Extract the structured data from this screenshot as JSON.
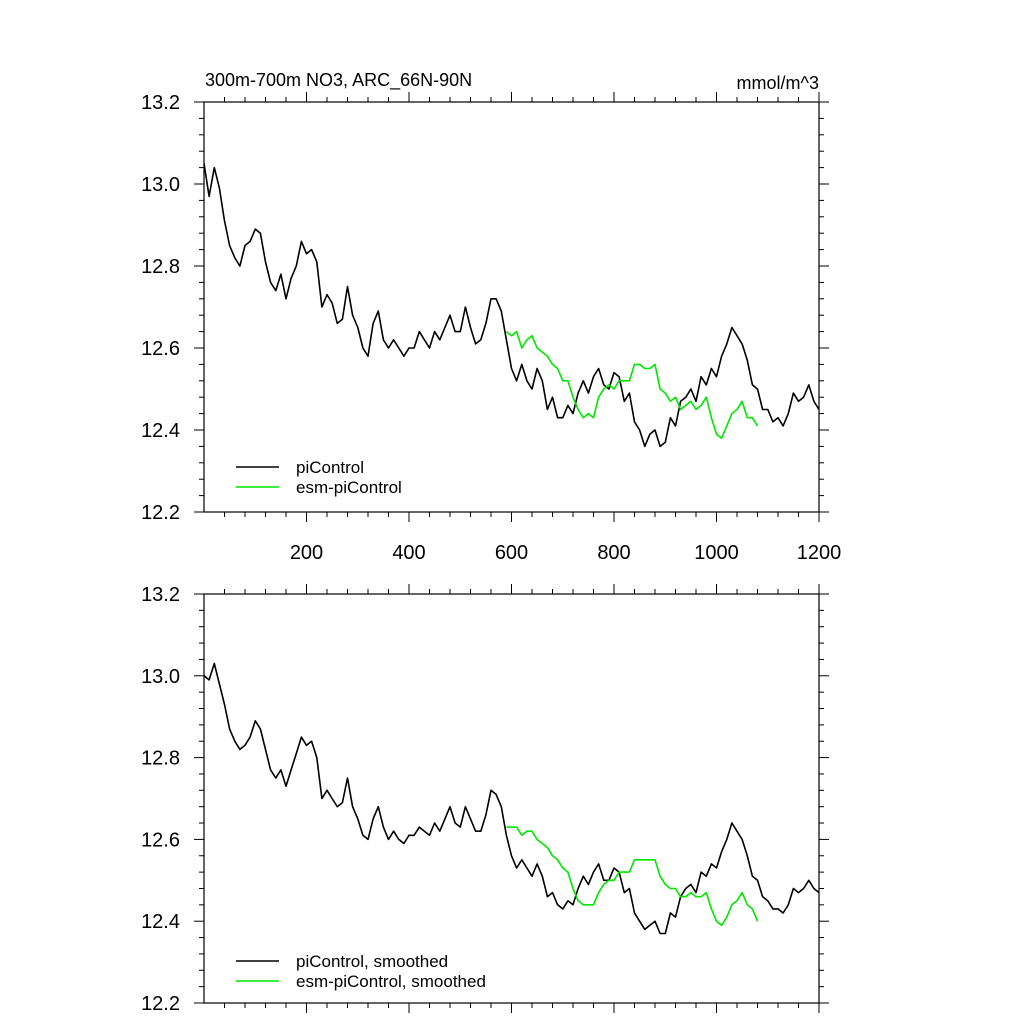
{
  "header": {
    "title": "300m-700m NO3, ARC_66N-90N",
    "units": "mmol/m^3"
  },
  "colors": {
    "piControl": "#000000",
    "esm": "#00e600"
  },
  "chart_data": [
    {
      "type": "line",
      "xlim": [
        0,
        1200
      ],
      "ylim": [
        12.2,
        13.2
      ],
      "x_ticks": [
        200,
        400,
        600,
        800,
        1000,
        1200
      ],
      "x_tick_labels": [
        "200",
        "400",
        "600",
        "800",
        "1000",
        "1200"
      ],
      "y_ticks": [
        12.2,
        12.4,
        12.6,
        12.8,
        13.0,
        13.2
      ],
      "y_tick_labels": [
        "12.2",
        "12.4",
        "12.6",
        "12.8",
        "13.0",
        "13.2"
      ],
      "legend_position": "bottom-left",
      "series": [
        {
          "name": "piControl",
          "color": "#000000",
          "x": [
            0,
            10,
            20,
            30,
            40,
            50,
            60,
            70,
            80,
            90,
            100,
            110,
            120,
            130,
            140,
            150,
            160,
            170,
            180,
            190,
            200,
            210,
            220,
            230,
            240,
            250,
            260,
            270,
            280,
            290,
            300,
            310,
            320,
            330,
            340,
            350,
            360,
            370,
            380,
            390,
            400,
            410,
            420,
            430,
            440,
            450,
            460,
            470,
            480,
            490,
            500,
            510,
            520,
            530,
            540,
            550,
            560,
            570,
            580,
            590,
            600,
            610,
            620,
            630,
            640,
            650,
            660,
            670,
            680,
            690,
            700,
            710,
            720,
            730,
            740,
            750,
            760,
            770,
            780,
            790,
            800,
            810,
            820,
            830,
            840,
            850,
            860,
            870,
            880,
            890,
            900,
            910,
            920,
            930,
            940,
            950,
            960,
            970,
            980,
            990,
            1000,
            1010,
            1020,
            1030,
            1040,
            1050,
            1060,
            1070,
            1080,
            1090,
            1100,
            1110,
            1120,
            1130,
            1140,
            1150,
            1160,
            1170,
            1180,
            1190,
            1200
          ],
          "y": [
            13.05,
            12.97,
            13.04,
            12.99,
            12.91,
            12.85,
            12.82,
            12.8,
            12.85,
            12.86,
            12.89,
            12.88,
            12.81,
            12.76,
            12.74,
            12.78,
            12.72,
            12.77,
            12.8,
            12.86,
            12.83,
            12.84,
            12.81,
            12.7,
            12.73,
            12.71,
            12.66,
            12.67,
            12.75,
            12.68,
            12.65,
            12.6,
            12.58,
            12.66,
            12.69,
            12.62,
            12.6,
            12.62,
            12.6,
            12.58,
            12.6,
            12.6,
            12.64,
            12.62,
            12.6,
            12.64,
            12.62,
            12.65,
            12.68,
            12.64,
            12.64,
            12.7,
            12.65,
            12.61,
            12.62,
            12.66,
            12.72,
            12.72,
            12.69,
            12.62,
            12.55,
            12.52,
            12.56,
            12.52,
            12.5,
            12.55,
            12.52,
            12.45,
            12.48,
            12.43,
            12.43,
            12.46,
            12.44,
            12.49,
            12.52,
            12.49,
            12.53,
            12.55,
            12.51,
            12.5,
            12.54,
            12.53,
            12.47,
            12.49,
            12.42,
            12.4,
            12.36,
            12.39,
            12.4,
            12.36,
            12.37,
            12.43,
            12.41,
            12.47,
            12.48,
            12.5,
            12.47,
            12.53,
            12.51,
            12.55,
            12.53,
            12.58,
            12.61,
            12.65,
            12.63,
            12.61,
            12.57,
            12.51,
            12.5,
            12.45,
            12.45,
            12.42,
            12.43,
            12.41,
            12.44,
            12.49,
            12.47,
            12.48,
            12.51,
            12.47,
            12.45
          ]
        },
        {
          "name": "esm-piControl",
          "color": "#00e600",
          "x": [
            590,
            600,
            610,
            620,
            630,
            640,
            650,
            660,
            670,
            680,
            690,
            700,
            710,
            720,
            730,
            740,
            750,
            760,
            770,
            780,
            790,
            800,
            810,
            820,
            830,
            840,
            850,
            860,
            870,
            880,
            890,
            900,
            910,
            920,
            930,
            940,
            950,
            960,
            970,
            980,
            990,
            1000,
            1010,
            1020,
            1030,
            1040,
            1050,
            1060,
            1070,
            1080
          ],
          "y": [
            12.64,
            12.63,
            12.64,
            12.6,
            12.62,
            12.63,
            12.6,
            12.59,
            12.58,
            12.56,
            12.55,
            12.52,
            12.52,
            12.48,
            12.45,
            12.43,
            12.44,
            12.43,
            12.48,
            12.5,
            12.51,
            12.5,
            12.52,
            12.52,
            12.52,
            12.56,
            12.56,
            12.55,
            12.55,
            12.56,
            12.5,
            12.49,
            12.47,
            12.48,
            12.45,
            12.46,
            12.47,
            12.45,
            12.46,
            12.48,
            12.43,
            12.39,
            12.38,
            12.41,
            12.44,
            12.45,
            12.47,
            12.43,
            12.43,
            12.41
          ]
        }
      ],
      "legend": [
        "piControl",
        "esm-piControl"
      ]
    },
    {
      "type": "line",
      "xlim": [
        0,
        1200
      ],
      "ylim": [
        12.2,
        13.2
      ],
      "x_ticks": [
        200,
        400,
        600,
        800,
        1000,
        1200
      ],
      "y_ticks": [
        12.2,
        12.4,
        12.6,
        12.8,
        13.0,
        13.2
      ],
      "y_tick_labels": [
        "12.2",
        "12.4",
        "12.6",
        "12.8",
        "13.0",
        "13.2"
      ],
      "legend_position": "bottom-left",
      "series": [
        {
          "name": "piControl, smoothed",
          "color": "#000000",
          "x": [
            0,
            10,
            20,
            30,
            40,
            50,
            60,
            70,
            80,
            90,
            100,
            110,
            120,
            130,
            140,
            150,
            160,
            170,
            180,
            190,
            200,
            210,
            220,
            230,
            240,
            250,
            260,
            270,
            280,
            290,
            300,
            310,
            320,
            330,
            340,
            350,
            360,
            370,
            380,
            390,
            400,
            410,
            420,
            430,
            440,
            450,
            460,
            470,
            480,
            490,
            500,
            510,
            520,
            530,
            540,
            550,
            560,
            570,
            580,
            590,
            600,
            610,
            620,
            630,
            640,
            650,
            660,
            670,
            680,
            690,
            700,
            710,
            720,
            730,
            740,
            750,
            760,
            770,
            780,
            790,
            800,
            810,
            820,
            830,
            840,
            850,
            860,
            870,
            880,
            890,
            900,
            910,
            920,
            930,
            940,
            950,
            960,
            970,
            980,
            990,
            1000,
            1010,
            1020,
            1030,
            1040,
            1050,
            1060,
            1070,
            1080,
            1090,
            1100,
            1110,
            1120,
            1130,
            1140,
            1150,
            1160,
            1170,
            1180,
            1190,
            1200
          ],
          "y": [
            13.0,
            12.99,
            13.03,
            12.98,
            12.93,
            12.87,
            12.84,
            12.82,
            12.83,
            12.85,
            12.89,
            12.87,
            12.82,
            12.77,
            12.75,
            12.77,
            12.73,
            12.77,
            12.81,
            12.85,
            12.83,
            12.84,
            12.8,
            12.7,
            12.72,
            12.7,
            12.68,
            12.69,
            12.75,
            12.68,
            12.65,
            12.61,
            12.6,
            12.65,
            12.68,
            12.63,
            12.6,
            12.62,
            12.6,
            12.59,
            12.61,
            12.61,
            12.63,
            12.62,
            12.61,
            12.64,
            12.62,
            12.65,
            12.68,
            12.64,
            12.63,
            12.68,
            12.65,
            12.62,
            12.62,
            12.66,
            12.72,
            12.71,
            12.68,
            12.61,
            12.56,
            12.53,
            12.55,
            12.53,
            12.51,
            12.54,
            12.51,
            12.46,
            12.47,
            12.44,
            12.43,
            12.45,
            12.44,
            12.48,
            12.51,
            12.49,
            12.52,
            12.54,
            12.5,
            12.5,
            12.53,
            12.52,
            12.47,
            12.48,
            12.42,
            12.4,
            12.38,
            12.39,
            12.4,
            12.37,
            12.37,
            12.42,
            12.41,
            12.46,
            12.48,
            12.49,
            12.47,
            12.52,
            12.51,
            12.54,
            12.53,
            12.57,
            12.6,
            12.64,
            12.62,
            12.6,
            12.56,
            12.51,
            12.5,
            12.46,
            12.45,
            12.43,
            12.43,
            12.42,
            12.44,
            12.48,
            12.47,
            12.48,
            12.5,
            12.48,
            12.47
          ]
        },
        {
          "name": "esm-piControl, smoothed",
          "color": "#00e600",
          "x": [
            590,
            600,
            610,
            620,
            630,
            640,
            650,
            660,
            670,
            680,
            690,
            700,
            710,
            720,
            730,
            740,
            750,
            760,
            770,
            780,
            790,
            800,
            810,
            820,
            830,
            840,
            850,
            860,
            870,
            880,
            890,
            900,
            910,
            920,
            930,
            940,
            950,
            960,
            970,
            980,
            990,
            1000,
            1010,
            1020,
            1030,
            1040,
            1050,
            1060,
            1070,
            1080
          ],
          "y": [
            12.63,
            12.63,
            12.63,
            12.61,
            12.62,
            12.62,
            12.6,
            12.59,
            12.58,
            12.56,
            12.55,
            12.53,
            12.52,
            12.48,
            12.45,
            12.44,
            12.44,
            12.44,
            12.47,
            12.49,
            12.5,
            12.5,
            12.52,
            12.52,
            12.52,
            12.55,
            12.55,
            12.55,
            12.55,
            12.55,
            12.51,
            12.49,
            12.48,
            12.48,
            12.46,
            12.46,
            12.47,
            12.46,
            12.46,
            12.47,
            12.43,
            12.4,
            12.39,
            12.41,
            12.44,
            12.45,
            12.47,
            12.44,
            12.43,
            12.4
          ]
        }
      ],
      "legend": [
        "piControl, smoothed",
        "esm-piControl, smoothed"
      ]
    }
  ]
}
